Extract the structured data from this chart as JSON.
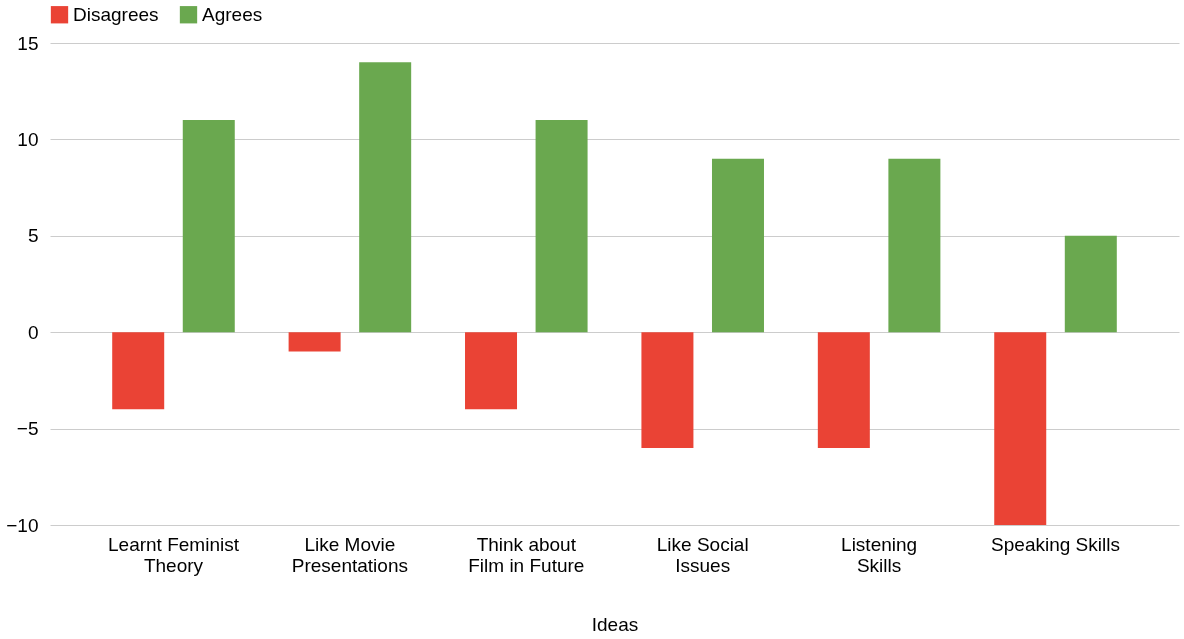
{
  "chart_data": {
    "type": "bar",
    "xlabel": "Ideas",
    "categories": [
      "Learnt Feminist Theory",
      "Like Movie Presentations",
      "Think about Film in Future",
      "Like Social Issues",
      "Listening Skills",
      "Speaking Skills"
    ],
    "series": [
      {
        "name": "Disagrees",
        "color": "#ea4335",
        "values": [
          -4,
          -1,
          -4,
          -6,
          -6,
          -10
        ]
      },
      {
        "name": "Agrees",
        "color": "#6aa84f",
        "values": [
          11,
          14,
          11,
          9,
          9,
          5
        ]
      }
    ],
    "ylim": [
      -10,
      15
    ],
    "yticks": [
      -10,
      -5,
      0,
      5,
      10,
      15
    ],
    "grid": "y",
    "legend": "top"
  }
}
